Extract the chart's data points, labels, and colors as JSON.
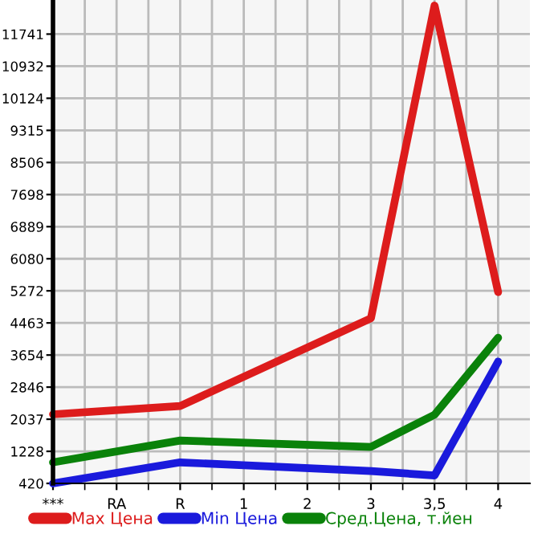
{
  "chart_data": {
    "type": "line",
    "categories": [
      "***",
      "RA",
      "R",
      "1",
      "2",
      "3",
      "3,5",
      "4"
    ],
    "series": [
      {
        "name": "Max Цена",
        "color": "#dd1c1c",
        "values": [
          2160,
          null,
          2370,
          null,
          null,
          4580,
          12460,
          5240
        ]
      },
      {
        "name": "Min Цена",
        "color": "#1a1adc",
        "values": [
          420,
          null,
          950,
          null,
          null,
          730,
          620,
          3490
        ]
      },
      {
        "name": "Сред.Цена, т.йен",
        "color": "#0a820a",
        "values": [
          950,
          null,
          1500,
          null,
          null,
          1340,
          2150,
          4090
        ]
      }
    ],
    "ylim": [
      420,
      12600
    ],
    "yticks": [
      420,
      1228,
      2037,
      2846,
      3654,
      4463,
      5272,
      6080,
      6889,
      7698,
      8506,
      9315,
      10124,
      10932,
      11741
    ],
    "grid": true,
    "legend": "bottom",
    "marker": "none",
    "line_style": "solid"
  }
}
